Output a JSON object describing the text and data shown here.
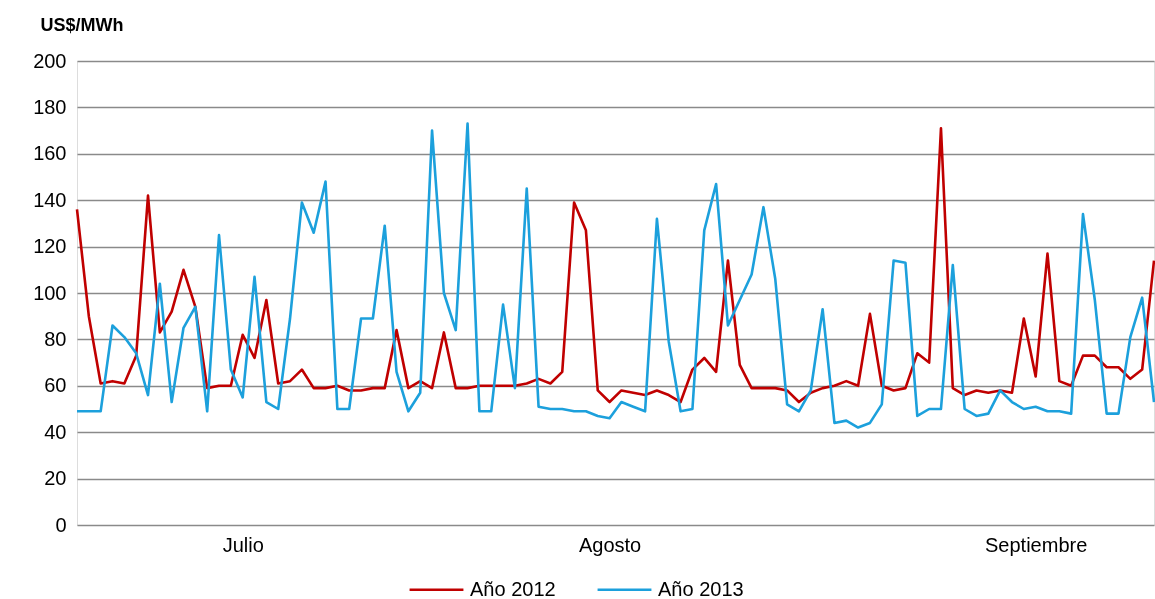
{
  "chart_data": {
    "type": "line",
    "ylabel": "US$/MWh",
    "categories": [
      null,
      null,
      null,
      null,
      null,
      null,
      null,
      null,
      null,
      null,
      null,
      null,
      null,
      null,
      "Julio",
      null,
      null,
      null,
      null,
      null,
      null,
      null,
      null,
      null,
      null,
      null,
      null,
      null,
      null,
      null,
      null,
      null,
      null,
      null,
      null,
      null,
      null,
      null,
      null,
      null,
      null,
      null,
      null,
      null,
      null,
      "Agosto",
      null,
      null,
      null,
      null,
      null,
      null,
      null,
      null,
      null,
      null,
      null,
      null,
      null,
      null,
      null,
      null,
      null,
      null,
      null,
      null,
      null,
      null,
      null,
      null,
      null,
      null,
      null,
      null,
      null,
      null,
      null,
      null,
      null,
      null,
      null,
      "Septiembre",
      null,
      null,
      null,
      null,
      null,
      null,
      null,
      null,
      null,
      null
    ],
    "series": [
      {
        "name": "Año 2012",
        "color": "#c00000",
        "values": [
          136,
          90,
          61,
          62,
          61,
          73,
          142,
          83,
          92,
          110,
          94,
          59,
          60,
          60,
          82,
          72,
          97,
          61,
          62,
          67,
          59,
          59,
          60,
          58,
          58,
          59,
          59,
          84,
          59,
          62,
          59,
          83,
          59,
          59,
          60,
          60,
          60,
          60,
          61,
          63,
          61,
          66,
          139,
          127,
          58,
          53,
          58,
          57,
          56,
          58,
          56,
          53,
          67,
          72,
          66,
          114,
          69,
          59,
          59,
          59,
          58,
          53,
          57,
          59,
          60,
          62,
          60,
          91,
          60,
          58,
          59,
          74,
          70,
          171,
          59,
          56,
          58,
          57,
          58,
          57,
          89,
          64,
          117,
          62,
          60,
          73,
          73,
          68,
          68,
          63,
          67,
          114
        ]
      },
      {
        "name": "Año 2013",
        "color": "#1ca0dc",
        "values": [
          49,
          49,
          49,
          86,
          81,
          74,
          56,
          104,
          53,
          85,
          94,
          49,
          125,
          67,
          55,
          107,
          53,
          50,
          89,
          139,
          126,
          148,
          50,
          50,
          89,
          89,
          129,
          66,
          49,
          57,
          170,
          100,
          84,
          173,
          49,
          49,
          95,
          59,
          145,
          51,
          50,
          50,
          49,
          49,
          47,
          46,
          53,
          51,
          49,
          132,
          79,
          49,
          50,
          127,
          147,
          86,
          97,
          108,
          137,
          106,
          52,
          49,
          58,
          93,
          44,
          45,
          42,
          44,
          52,
          114,
          113,
          47,
          50,
          50,
          112,
          50,
          47,
          48,
          58,
          53,
          50,
          51,
          49,
          49,
          48,
          134,
          97,
          48,
          48,
          81,
          98,
          53
        ]
      }
    ],
    "ylim": [
      0,
      200
    ],
    "yticks": [
      0,
      20,
      40,
      60,
      80,
      100,
      120,
      140,
      160,
      180,
      200
    ],
    "grid": "y",
    "legend": "bottom",
    "marker": "none",
    "line_style": "solid"
  }
}
